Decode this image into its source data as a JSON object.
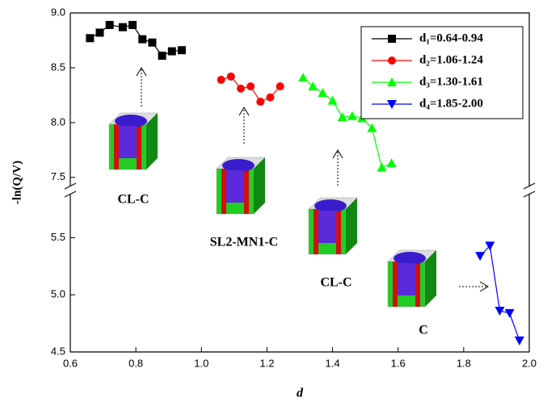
{
  "chart_data": {
    "type": "line",
    "x_label": "d",
    "y_label": "-ln(Q/V)",
    "xlim": [
      0.6,
      2.0
    ],
    "xticks": [
      0.6,
      0.8,
      {
        "value": 1,
        "label": "1.0"
      },
      1.2,
      1.4,
      1.6,
      1.8,
      {
        "value": 2,
        "label": "2.0"
      }
    ],
    "ylim_lower": [
      4.5,
      5.8
    ],
    "ylim_upper": [
      7.41,
      9.0
    ],
    "yticks": [
      4.5,
      {
        "value": 5,
        "label": "5.0"
      },
      5.5,
      7.5,
      {
        "value": 8,
        "label": "8.0"
      },
      8.5,
      {
        "value": 9,
        "label": "9.0"
      }
    ],
    "legend": "upper right",
    "series": [
      {
        "name": "d₁=0.64-0.94",
        "color": "#000000",
        "marker": "square",
        "x": [
          0.66,
          0.69,
          0.72,
          0.76,
          0.79,
          0.82,
          0.85,
          0.88,
          0.91,
          0.94
        ],
        "values": [
          8.77,
          8.82,
          8.89,
          8.87,
          8.89,
          8.76,
          8.73,
          8.61,
          8.65,
          8.66
        ]
      },
      {
        "name": "d₂=1.06-1.24",
        "color": "#ff0000",
        "marker": "circle",
        "x": [
          1.06,
          1.09,
          1.12,
          1.15,
          1.18,
          1.21,
          1.24
        ],
        "values": [
          8.39,
          8.42,
          8.31,
          8.33,
          8.19,
          8.23,
          8.33
        ]
      },
      {
        "name": "d₃=1.30-1.61",
        "color": "#00ff00",
        "marker": "triangle-up",
        "x": [
          1.31,
          1.34,
          1.37,
          1.4,
          1.43,
          1.46,
          1.49,
          1.52,
          1.55,
          1.58
        ],
        "values": [
          8.41,
          8.33,
          8.27,
          8.2,
          8.05,
          8.06,
          8.04,
          7.95,
          7.59,
          7.63
        ]
      },
      {
        "name": "d₄=1.85-2.00",
        "color": "#0000ff",
        "marker": "triangle-down",
        "x": [
          1.85,
          1.88,
          1.91,
          1.94,
          1.97
        ],
        "values": [
          5.34,
          5.43,
          4.86,
          4.84,
          4.6
        ]
      }
    ],
    "annotations": [
      "CL-C",
      "SL2-MN1-C",
      "CL-C",
      "C"
    ]
  }
}
